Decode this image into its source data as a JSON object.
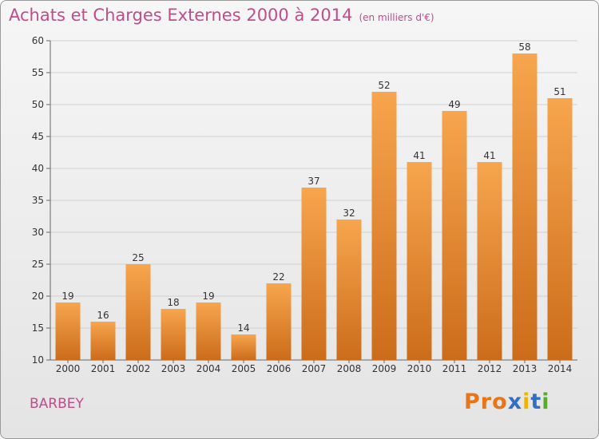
{
  "header": {
    "title": "Achats et Charges Externes 2000 à 2014",
    "unit": "(en milliers d'€)"
  },
  "footer": {
    "commune": "BARBEY",
    "brand": "Proxiti"
  },
  "colors": {
    "title": "#c14c8a",
    "bar_top": "#f7a54e",
    "bar_bottom": "#cc6c1a",
    "grid": "#d0d0d0",
    "brand_letters": [
      "#e8751a",
      "#e8751a",
      "#e8751a",
      "#2f6fc4",
      "#f0b400",
      "#2f6fc4",
      "#5aaa2c"
    ]
  },
  "chart_data": {
    "type": "bar",
    "title": "Achats et Charges Externes 2000 à 2014",
    "subtitle": "(en milliers d'€)",
    "categories": [
      "2000",
      "2001",
      "2002",
      "2003",
      "2004",
      "2005",
      "2006",
      "2007",
      "2008",
      "2009",
      "2010",
      "2011",
      "2012",
      "2013",
      "2014"
    ],
    "values": [
      19,
      16,
      25,
      18,
      19,
      14,
      22,
      37,
      32,
      52,
      41,
      49,
      41,
      58,
      51
    ],
    "data_labels": [
      "19",
      "16",
      "25",
      "18",
      "19",
      "14",
      "22",
      "37",
      "32",
      "52",
      "41",
      "49",
      "41",
      "58",
      "51"
    ],
    "xlabel": "",
    "ylabel": "",
    "ylim": [
      10,
      60
    ],
    "yticks": [
      "10",
      "15",
      "20",
      "25",
      "30",
      "35",
      "40",
      "45",
      "50",
      "55",
      "60"
    ],
    "grid": true,
    "legend": "none"
  }
}
